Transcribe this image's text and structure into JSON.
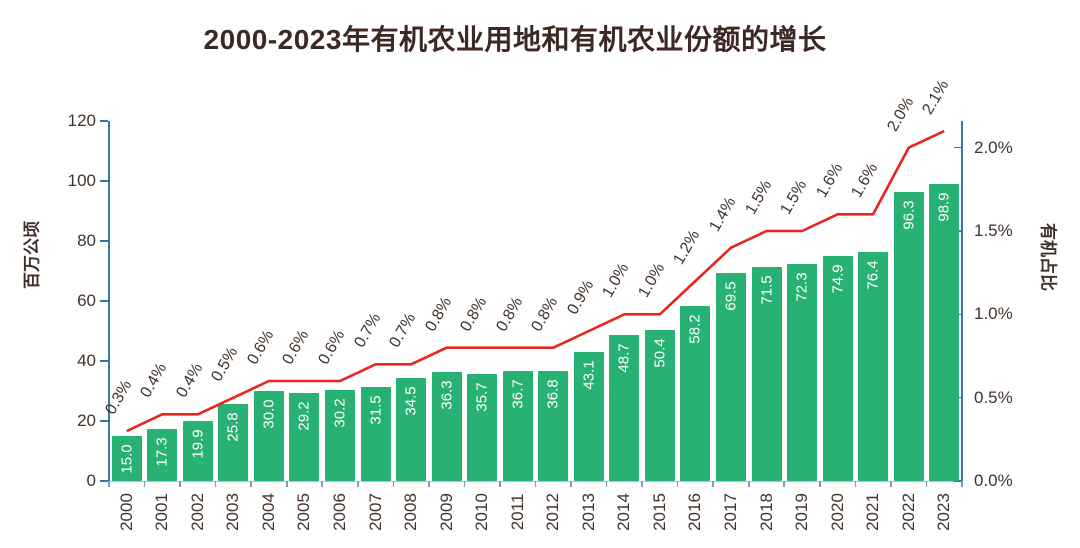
{
  "title": "2000-2023年有机农业用地和有机农业份额的增长",
  "chart_data": {
    "type": "bar",
    "title": "2000-2023年有机农业用地和有机农业份额的增长",
    "categories": [
      "2000",
      "2001",
      "2002",
      "2003",
      "2004",
      "2005",
      "2006",
      "2007",
      "2008",
      "2009",
      "2010",
      "2011",
      "2012",
      "2013",
      "2014",
      "2015",
      "2016",
      "2017",
      "2018",
      "2019",
      "2020",
      "2021",
      "2022",
      "2023"
    ],
    "series": [
      {
        "type": "bar",
        "axis": "left",
        "values": [
          15.0,
          17.3,
          19.9,
          25.8,
          30.0,
          29.2,
          30.2,
          31.5,
          34.5,
          36.3,
          35.7,
          36.7,
          36.8,
          43.1,
          48.7,
          50.4,
          58.2,
          69.5,
          71.5,
          72.3,
          74.9,
          76.4,
          96.3,
          98.9
        ],
        "labels": [
          "15.0",
          "17.3",
          "19.9",
          "25.8",
          "30.0",
          "29.2",
          "30.2",
          "31.5",
          "34.5",
          "36.3",
          "35.7",
          "36.7",
          "36.8",
          "43.1",
          "48.7",
          "50.4",
          "58.2",
          "69.5",
          "71.5",
          "72.3",
          "74.9",
          "76.4",
          "96.3",
          "98.9"
        ],
        "color": "#27b173"
      },
      {
        "type": "line",
        "axis": "right",
        "values": [
          0.3,
          0.4,
          0.4,
          0.5,
          0.6,
          0.6,
          0.6,
          0.7,
          0.7,
          0.8,
          0.8,
          0.8,
          0.8,
          0.9,
          1.0,
          1.0,
          1.2,
          1.4,
          1.5,
          1.5,
          1.6,
          1.6,
          2.0,
          2.1
        ],
        "labels": [
          "0.3%",
          "0.4%",
          "0.4%",
          "0.5%",
          "0.6%",
          "0.6%",
          "0.6%",
          "0.7%",
          "0.7%",
          "0.8%",
          "0.8%",
          "0.8%",
          "0.8%",
          "0.9%",
          "1.0%",
          "1.0%",
          "1.2%",
          "1.4%",
          "1.5%",
          "1.5%",
          "1.6%",
          "1.6%",
          "2.0%",
          "2.1%"
        ],
        "color": "#e8251d"
      }
    ],
    "ylabel": "百万公顷",
    "ylabel_right": "有机占比",
    "ylim": [
      0,
      120
    ],
    "ylim_right": [
      0,
      2.16
    ],
    "yticks_left": [
      "0",
      "20",
      "40",
      "60",
      "80",
      "100",
      "120"
    ],
    "yticks_right": [
      "0.0%",
      "0.5%",
      "1.0%",
      "1.5%",
      "2.0%"
    ],
    "grid": false,
    "legend": false
  },
  "colors": {
    "bar": "#27b173",
    "line": "#e8251d",
    "axis": "#3579a5",
    "text": "#41332b",
    "title_text": "#3e2823",
    "bar_label_text": "#ffffff",
    "background": "#ffffff"
  }
}
